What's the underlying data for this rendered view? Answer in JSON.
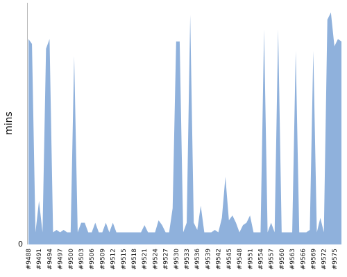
{
  "chart_data": {
    "type": "area",
    "title": "",
    "xlabel": "",
    "ylabel": "mins",
    "y_ticks": [
      "0"
    ],
    "ylim": [
      0,
      100
    ],
    "grid": false,
    "fill_color": "#8fb1dc",
    "axis_color": "#b8b8b8",
    "x": [
      "#9488",
      "#9489",
      "#9490",
      "#9491",
      "#9492",
      "#9493",
      "#9494",
      "#9495",
      "#9496",
      "#9497",
      "#9498",
      "#9499",
      "#9500",
      "#9501",
      "#9502",
      "#9503",
      "#9504",
      "#9505",
      "#9506",
      "#9507",
      "#9508",
      "#9509",
      "#9510",
      "#9511",
      "#9512",
      "#9513",
      "#9514",
      "#9515",
      "#9516",
      "#9517",
      "#9518",
      "#9519",
      "#9520",
      "#9521",
      "#9522",
      "#9523",
      "#9524",
      "#9525",
      "#9526",
      "#9527",
      "#9528",
      "#9529",
      "#9530",
      "#9531",
      "#9532",
      "#9533",
      "#9534",
      "#9535",
      "#9536",
      "#9537",
      "#9538",
      "#9539",
      "#9540",
      "#9541",
      "#9542",
      "#9543",
      "#9544",
      "#9545",
      "#9546",
      "#9547",
      "#9548",
      "#9549",
      "#9550",
      "#9551",
      "#9552",
      "#9553",
      "#9554",
      "#9555",
      "#9556",
      "#9557",
      "#9558",
      "#9559",
      "#9560",
      "#9561",
      "#9562",
      "#9563",
      "#9564",
      "#9565",
      "#9566",
      "#9567",
      "#9568",
      "#9569",
      "#9570",
      "#9571",
      "#9572",
      "#9573",
      "#9574",
      "#9575",
      "#9576",
      "#9577"
    ],
    "values": [
      85,
      83,
      5,
      18,
      5,
      81,
      85,
      5,
      6,
      5,
      6,
      5,
      5,
      78,
      5,
      9,
      9,
      5,
      5,
      9,
      5,
      5,
      9,
      5,
      9,
      5,
      5,
      5,
      5,
      5,
      5,
      5,
      5,
      8,
      5,
      5,
      5,
      10,
      8,
      5,
      5,
      15,
      84,
      84,
      5,
      9,
      95,
      9,
      6,
      16,
      5,
      5,
      5,
      6,
      5,
      11,
      28,
      10,
      12,
      9,
      5,
      8,
      9,
      12,
      5,
      5,
      5,
      89,
      5,
      9,
      5,
      89,
      5,
      5,
      5,
      5,
      80,
      5,
      5,
      5,
      6,
      80,
      5,
      11,
      5,
      93,
      96,
      82,
      85,
      84
    ],
    "tick_every": 3
  }
}
